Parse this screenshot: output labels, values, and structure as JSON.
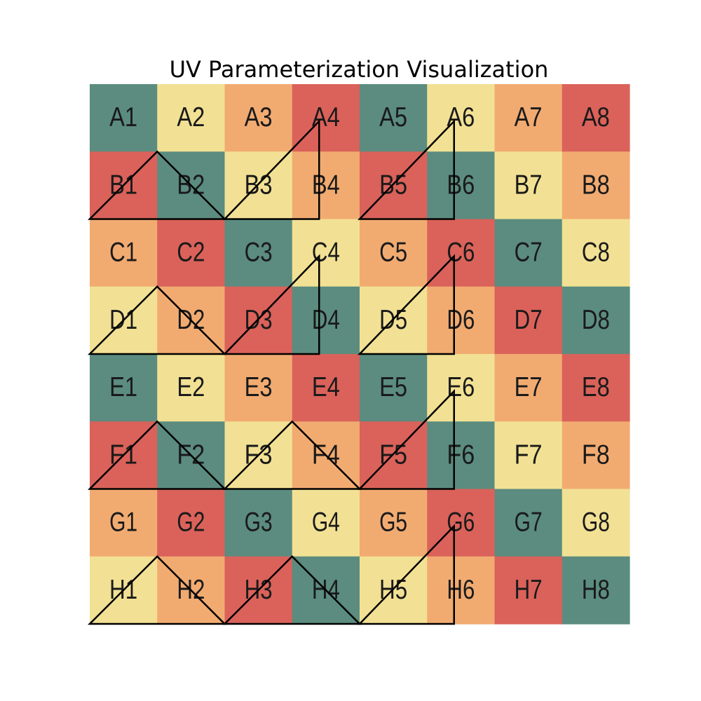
{
  "title": "UV Parameterization Visualization",
  "chart_data": {
    "type": "heatmap",
    "title": "UV Parameterization Visualization",
    "rows": [
      "A",
      "B",
      "C",
      "D",
      "E",
      "F",
      "G",
      "H"
    ],
    "columns": [
      1,
      2,
      3,
      4,
      5,
      6,
      7,
      8
    ],
    "palette": {
      "teal": "#5b8c7f",
      "yellow": "#f2e194",
      "orange": "#f1ab71",
      "red": "#da625a"
    },
    "grid_colors": [
      [
        "teal",
        "yellow",
        "orange",
        "red",
        "teal",
        "yellow",
        "orange",
        "red"
      ],
      [
        "red",
        "teal",
        "yellow",
        "orange",
        "red",
        "teal",
        "yellow",
        "orange"
      ],
      [
        "orange",
        "red",
        "teal",
        "yellow",
        "orange",
        "red",
        "teal",
        "yellow"
      ],
      [
        "yellow",
        "orange",
        "red",
        "teal",
        "yellow",
        "orange",
        "red",
        "teal"
      ],
      [
        "teal",
        "yellow",
        "orange",
        "red",
        "teal",
        "yellow",
        "orange",
        "red"
      ],
      [
        "red",
        "teal",
        "yellow",
        "orange",
        "red",
        "teal",
        "yellow",
        "orange"
      ],
      [
        "orange",
        "red",
        "teal",
        "yellow",
        "orange",
        "red",
        "teal",
        "yellow"
      ],
      [
        "yellow",
        "orange",
        "red",
        "teal",
        "yellow",
        "orange",
        "red",
        "teal"
      ]
    ],
    "labels": [
      [
        "A1",
        "A2",
        "A3",
        "A4",
        "A5",
        "A6",
        "A7",
        "A8"
      ],
      [
        "B1",
        "B2",
        "B3",
        "B4",
        "B5",
        "B6",
        "B7",
        "B8"
      ],
      [
        "C1",
        "C2",
        "C3",
        "C4",
        "C5",
        "C6",
        "C7",
        "C8"
      ],
      [
        "D1",
        "D2",
        "D3",
        "D4",
        "D5",
        "D6",
        "D7",
        "D8"
      ],
      [
        "E1",
        "E2",
        "E3",
        "E4",
        "E5",
        "E6",
        "E7",
        "E8"
      ],
      [
        "F1",
        "F2",
        "F3",
        "F4",
        "F5",
        "F6",
        "F7",
        "F8"
      ],
      [
        "G1",
        "G2",
        "G3",
        "G4",
        "G5",
        "G6",
        "G7",
        "G8"
      ],
      [
        "H1",
        "H2",
        "H3",
        "H4",
        "H5",
        "H6",
        "H7",
        "H8"
      ]
    ],
    "uv_triangles": [
      {
        "points": [
          [
            0,
            2
          ],
          [
            1,
            1
          ],
          [
            2,
            2
          ]
        ]
      },
      {
        "points": [
          [
            2,
            2
          ],
          [
            3.4,
            2
          ],
          [
            3.4,
            0.55
          ]
        ]
      },
      {
        "points": [
          [
            4,
            2
          ],
          [
            5.4,
            2
          ],
          [
            5.4,
            0.55
          ]
        ]
      },
      {
        "points": [
          [
            0,
            4
          ],
          [
            1,
            3
          ],
          [
            2,
            4
          ]
        ]
      },
      {
        "points": [
          [
            2,
            4
          ],
          [
            3.4,
            4
          ],
          [
            3.4,
            2.55
          ]
        ]
      },
      {
        "points": [
          [
            4,
            4
          ],
          [
            5.4,
            4
          ],
          [
            5.4,
            2.55
          ]
        ]
      },
      {
        "points": [
          [
            0,
            6
          ],
          [
            1,
            5
          ],
          [
            2,
            6
          ]
        ]
      },
      {
        "points": [
          [
            2,
            6
          ],
          [
            3,
            5
          ],
          [
            4,
            6
          ]
        ]
      },
      {
        "points": [
          [
            4,
            6
          ],
          [
            5.4,
            6
          ],
          [
            5.4,
            4.55
          ]
        ]
      },
      {
        "points": [
          [
            0,
            8
          ],
          [
            1,
            7
          ],
          [
            2,
            8
          ]
        ]
      },
      {
        "points": [
          [
            2,
            8
          ],
          [
            3,
            7
          ],
          [
            4,
            8
          ]
        ]
      },
      {
        "points": [
          [
            4,
            8
          ],
          [
            5.4,
            8
          ],
          [
            5.4,
            6.55
          ]
        ]
      }
    ],
    "grid": false,
    "axes_visible": false
  }
}
